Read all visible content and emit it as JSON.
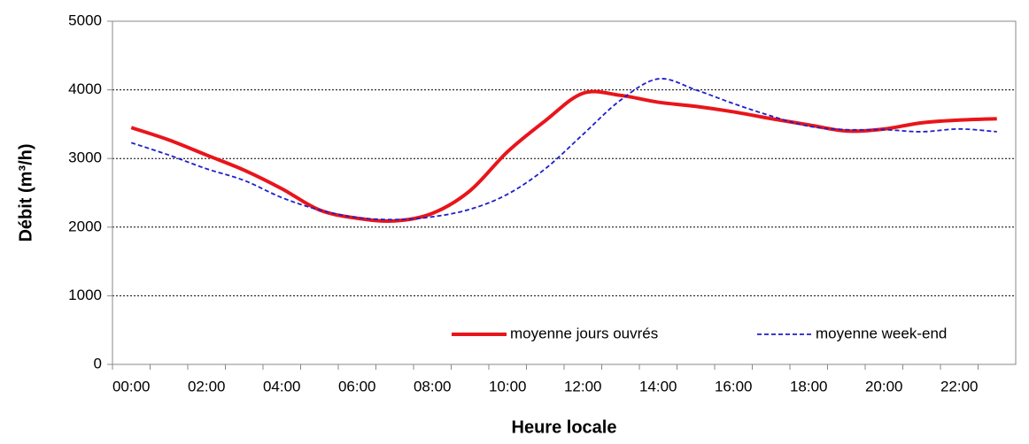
{
  "chart_data": {
    "type": "line",
    "x_label": "Heure locale",
    "y_label": "Débit (m³/h)",
    "categories": [
      "00:00",
      null,
      "02:00",
      null,
      "04:00",
      null,
      "06:00",
      null,
      "08:00",
      null,
      "10:00",
      null,
      "12:00",
      null,
      "14:00",
      null,
      "16:00",
      null,
      "18:00",
      null,
      "20:00",
      null,
      "22:00",
      null
    ],
    "series": [
      {
        "name": "moyenne jours ouvrés",
        "color": "#e8151b",
        "style": "solid",
        "values": [
          3450,
          3270,
          3050,
          2830,
          2560,
          2250,
          2130,
          2090,
          2200,
          2530,
          3100,
          3550,
          3950,
          3920,
          3820,
          3760,
          3680,
          3580,
          3490,
          3400,
          3430,
          3520,
          3560,
          3580
        ]
      },
      {
        "name": "moyenne week-end",
        "color": "#1f1fcc",
        "style": "dashed",
        "values": [
          3230,
          3050,
          2850,
          2680,
          2430,
          2250,
          2140,
          2110,
          2150,
          2260,
          2480,
          2850,
          3350,
          3850,
          4160,
          4000,
          3800,
          3620,
          3470,
          3420,
          3420,
          3390,
          3430,
          3390
        ]
      }
    ],
    "ylim": [
      0,
      5000
    ],
    "yticks": [
      0,
      1000,
      2000,
      3000,
      4000,
      5000
    ],
    "grid": true,
    "legend": "lower right"
  }
}
